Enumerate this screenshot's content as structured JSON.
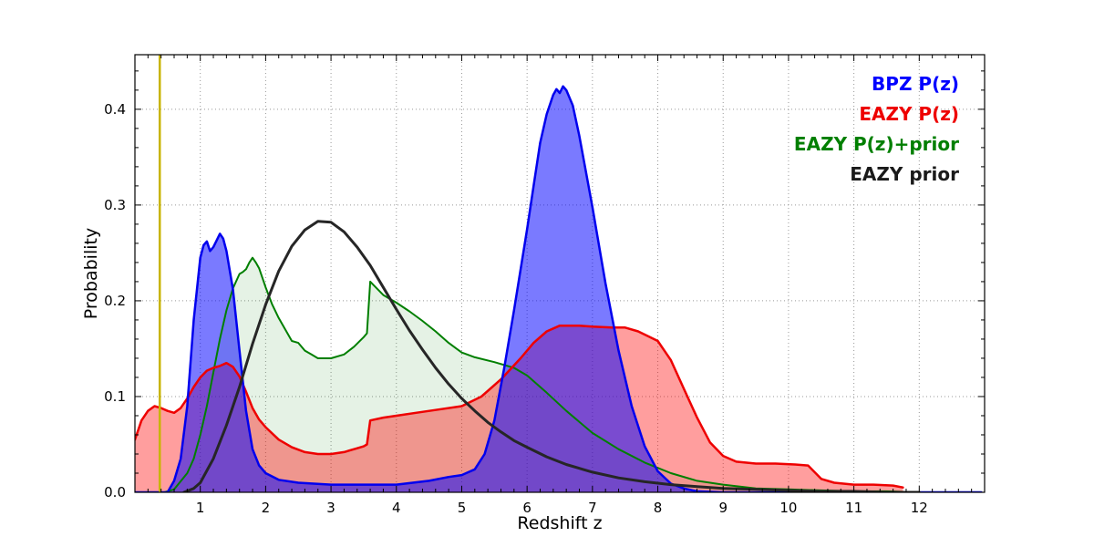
{
  "figure": {
    "background": "#ffffff",
    "xlabel": "Redshift z",
    "ylabel": "Probability"
  },
  "axes": {
    "x_tick_labels": [
      "1",
      "2",
      "3",
      "4",
      "5",
      "6",
      "7",
      "8",
      "9",
      "10",
      "11",
      "12"
    ],
    "x_tick_values": [
      1,
      2,
      3,
      4,
      5,
      6,
      7,
      8,
      9,
      10,
      11,
      12
    ],
    "y_tick_labels": [
      "0.0",
      "0.1",
      "0.2",
      "0.3",
      "0.4"
    ],
    "y_tick_values": [
      0.0,
      0.1,
      0.2,
      0.3,
      0.4
    ],
    "frame_color": "#000000",
    "grid_color": "#999999"
  },
  "legend": {
    "entries": [
      {
        "label": "BPZ P(z)",
        "color": "#0000ff"
      },
      {
        "label": "EAZY P(z)",
        "color": "#ee0000"
      },
      {
        "label": "EAZY P(z)+prior",
        "color": "#007f00"
      },
      {
        "label": "EAZY prior",
        "color": "#1a1a1a"
      }
    ]
  },
  "chart_data": {
    "type": "area",
    "title": "",
    "xlabel": "Redshift z",
    "ylabel": "Probability",
    "xlim": [
      0,
      13
    ],
    "ylim": [
      0,
      0.457
    ],
    "grid": "dotted",
    "legend_position": "upper right",
    "vline": {
      "x": 0.38,
      "color": "#c8b400",
      "width": 2.5
    },
    "series": [
      {
        "name": "EAZY P(z)+prior",
        "line_color": "#007f00",
        "line_width": 2,
        "fill_color": "rgba(0,128,0,0.10)",
        "x": [
          0.45,
          0.6,
          0.8,
          0.9,
          1.0,
          1.1,
          1.2,
          1.3,
          1.4,
          1.5,
          1.6,
          1.65,
          1.7,
          1.75,
          1.8,
          1.85,
          1.9,
          2.0,
          2.1,
          2.2,
          2.3,
          2.4,
          2.5,
          2.6,
          2.7,
          2.8,
          3.0,
          3.2,
          3.35,
          3.5,
          3.55,
          3.6,
          3.7,
          3.8,
          4.0,
          4.2,
          4.4,
          4.6,
          4.8,
          5.0,
          5.2,
          5.5,
          5.8,
          6.0,
          6.3,
          6.6,
          7.0,
          7.4,
          7.8,
          8.2,
          8.6,
          9.0,
          9.5,
          10.0,
          10.5,
          11.0,
          11.5,
          12.0
        ],
        "y": [
          0.0,
          0.003,
          0.02,
          0.035,
          0.06,
          0.09,
          0.125,
          0.16,
          0.19,
          0.213,
          0.228,
          0.23,
          0.233,
          0.24,
          0.245,
          0.24,
          0.234,
          0.214,
          0.196,
          0.182,
          0.17,
          0.158,
          0.156,
          0.148,
          0.144,
          0.14,
          0.14,
          0.144,
          0.152,
          0.162,
          0.166,
          0.22,
          0.213,
          0.206,
          0.198,
          0.189,
          0.179,
          0.168,
          0.156,
          0.146,
          0.141,
          0.136,
          0.13,
          0.122,
          0.104,
          0.085,
          0.062,
          0.045,
          0.031,
          0.02,
          0.012,
          0.008,
          0.004,
          0.003,
          0.002,
          0.001,
          0.001,
          0.0
        ]
      },
      {
        "name": "EAZY P(z)",
        "line_color": "#ee0000",
        "line_width": 2.5,
        "fill_color": "rgba(255,0,0,0.38)",
        "x": [
          0.0,
          0.1,
          0.2,
          0.3,
          0.4,
          0.5,
          0.6,
          0.7,
          0.8,
          0.9,
          1.0,
          1.1,
          1.2,
          1.3,
          1.4,
          1.5,
          1.6,
          1.7,
          1.8,
          1.9,
          2.0,
          2.2,
          2.4,
          2.6,
          2.8,
          3.0,
          3.2,
          3.4,
          3.5,
          3.55,
          3.6,
          3.8,
          4.0,
          4.3,
          4.6,
          5.0,
          5.3,
          5.6,
          5.9,
          6.1,
          6.3,
          6.5,
          6.8,
          7.0,
          7.3,
          7.5,
          7.7,
          7.85,
          8.0,
          8.2,
          8.4,
          8.6,
          8.8,
          9.0,
          9.2,
          9.5,
          9.8,
          10.1,
          10.3,
          10.5,
          10.7,
          11.0,
          11.3,
          11.6,
          11.75
        ],
        "y": [
          0.055,
          0.075,
          0.085,
          0.09,
          0.088,
          0.085,
          0.083,
          0.088,
          0.098,
          0.11,
          0.12,
          0.127,
          0.13,
          0.132,
          0.135,
          0.131,
          0.121,
          0.105,
          0.088,
          0.076,
          0.068,
          0.055,
          0.047,
          0.042,
          0.04,
          0.04,
          0.042,
          0.046,
          0.048,
          0.05,
          0.075,
          0.078,
          0.08,
          0.083,
          0.086,
          0.09,
          0.1,
          0.118,
          0.14,
          0.156,
          0.168,
          0.174,
          0.174,
          0.173,
          0.172,
          0.172,
          0.168,
          0.163,
          0.158,
          0.138,
          0.108,
          0.078,
          0.052,
          0.038,
          0.032,
          0.03,
          0.03,
          0.029,
          0.028,
          0.014,
          0.01,
          0.008,
          0.008,
          0.007,
          0.005
        ]
      },
      {
        "name": "BPZ P(z)",
        "line_color": "#0000ee",
        "line_width": 2.5,
        "fill_color": "rgba(0,0,255,0.52)",
        "x": [
          0.0,
          0.5,
          0.6,
          0.7,
          0.8,
          0.9,
          1.0,
          1.05,
          1.1,
          1.15,
          1.2,
          1.25,
          1.3,
          1.35,
          1.4,
          1.5,
          1.6,
          1.7,
          1.8,
          1.9,
          2.0,
          2.2,
          2.5,
          3.0,
          3.5,
          4.0,
          4.5,
          4.8,
          5.0,
          5.2,
          5.35,
          5.5,
          5.65,
          5.8,
          6.0,
          6.1,
          6.2,
          6.3,
          6.4,
          6.45,
          6.5,
          6.55,
          6.6,
          6.7,
          6.8,
          7.0,
          7.2,
          7.4,
          7.6,
          7.8,
          8.0,
          8.2,
          8.4,
          8.6,
          9.0,
          10.0,
          11.0,
          12.0,
          12.95
        ],
        "y": [
          0.0,
          0.0,
          0.012,
          0.035,
          0.09,
          0.18,
          0.245,
          0.258,
          0.262,
          0.252,
          0.256,
          0.263,
          0.27,
          0.265,
          0.252,
          0.212,
          0.148,
          0.085,
          0.045,
          0.028,
          0.02,
          0.013,
          0.01,
          0.008,
          0.008,
          0.008,
          0.012,
          0.016,
          0.018,
          0.024,
          0.04,
          0.075,
          0.13,
          0.19,
          0.275,
          0.32,
          0.365,
          0.395,
          0.415,
          0.421,
          0.417,
          0.424,
          0.42,
          0.404,
          0.372,
          0.298,
          0.218,
          0.148,
          0.09,
          0.048,
          0.022,
          0.009,
          0.004,
          0.001,
          0.0,
          0.0,
          0.0,
          0.0,
          0.0
        ]
      },
      {
        "name": "EAZY prior",
        "line_color": "#262626",
        "line_width": 3,
        "fill_color": "none",
        "x": [
          0.75,
          0.9,
          1.0,
          1.2,
          1.4,
          1.6,
          1.8,
          2.0,
          2.2,
          2.4,
          2.6,
          2.8,
          3.0,
          3.2,
          3.4,
          3.6,
          3.8,
          4.0,
          4.2,
          4.4,
          4.6,
          4.8,
          5.0,
          5.2,
          5.4,
          5.6,
          5.8,
          6.0,
          6.3,
          6.6,
          7.0,
          7.4,
          7.8,
          8.2,
          8.6,
          9.0,
          9.5,
          10.0,
          10.5,
          11.0,
          11.5,
          12.0
        ],
        "y": [
          0.0,
          0.004,
          0.01,
          0.035,
          0.07,
          0.11,
          0.155,
          0.196,
          0.231,
          0.257,
          0.274,
          0.283,
          0.282,
          0.272,
          0.256,
          0.237,
          0.214,
          0.191,
          0.169,
          0.149,
          0.13,
          0.113,
          0.098,
          0.085,
          0.073,
          0.063,
          0.054,
          0.047,
          0.037,
          0.029,
          0.021,
          0.015,
          0.011,
          0.008,
          0.006,
          0.004,
          0.003,
          0.002,
          0.001,
          0.001,
          0.0,
          0.0
        ]
      }
    ]
  }
}
